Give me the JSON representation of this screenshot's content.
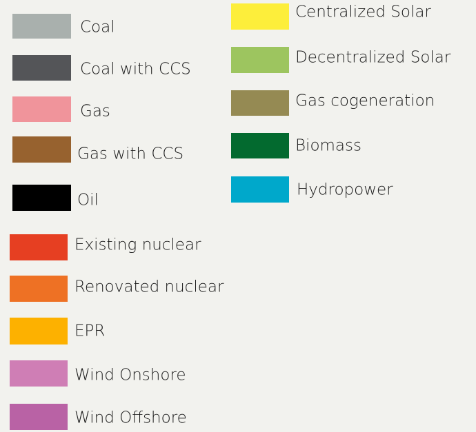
{
  "legend": {
    "items": [
      {
        "name": "Coal",
        "color": "#a9b0ad"
      },
      {
        "name": "Coal with CCS",
        "color": "#545558"
      },
      {
        "name": "Gas",
        "color": "#f0949b"
      },
      {
        "name": "Gas with CCS",
        "color": "#97622f"
      },
      {
        "name": "Oil",
        "color": "#000000"
      },
      {
        "name": "Existing nuclear",
        "color": "#e63f22"
      },
      {
        "name": "Renovated nuclear",
        "color": "#ee7124"
      },
      {
        "name": "EPR",
        "color": "#fdb100"
      },
      {
        "name": "Wind Onshore",
        "color": "#cf7eb5"
      },
      {
        "name": "Wind Offshore",
        "color": "#b962a5"
      },
      {
        "name": "Centralized Solar",
        "color": "#fdee3b"
      },
      {
        "name": "Decentralized Solar",
        "color": "#9dc55f"
      },
      {
        "name": "Gas cogeneration",
        "color": "#958a53"
      },
      {
        "name": "Biomass",
        "color": "#036a2f"
      },
      {
        "name": "Hydropower",
        "color": "#00a8cb"
      }
    ]
  }
}
